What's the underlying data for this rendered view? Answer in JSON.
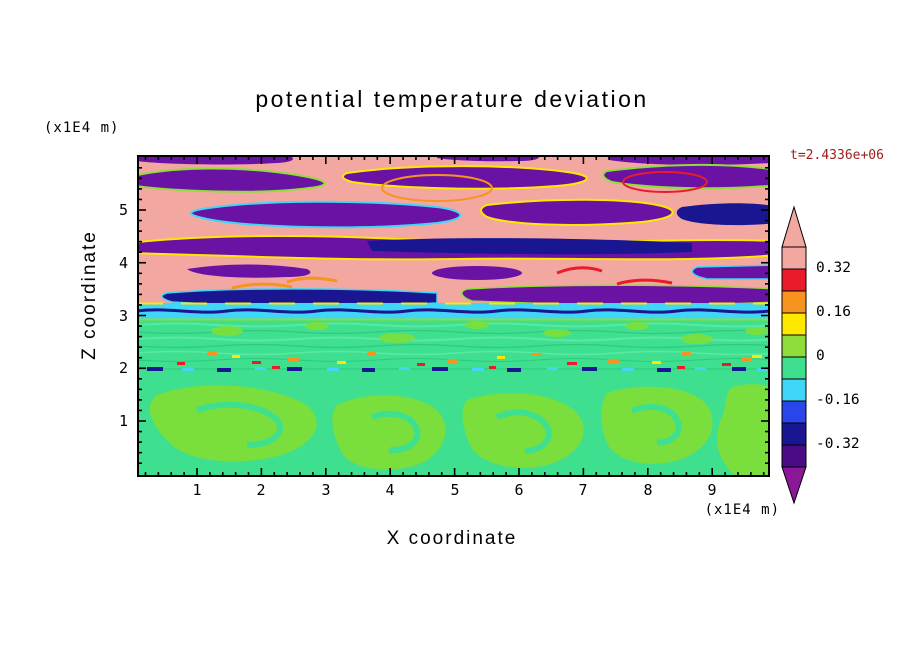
{
  "title": "potential temperature deviation",
  "time_label": "t=2.4336e+06",
  "axes": {
    "x": {
      "label": "X coordinate",
      "unit": "(x1E4 m)",
      "ticks": [
        "1",
        "2",
        "3",
        "4",
        "5",
        "6",
        "7",
        "8",
        "9"
      ]
    },
    "z": {
      "label": "Z coordinate",
      "unit": "(x1E4 m)",
      "ticks": [
        "5",
        "4",
        "3",
        "2",
        "1"
      ]
    }
  },
  "colorbar": {
    "labels": [
      "0.32",
      "0.16",
      "0",
      "-0.16",
      "-0.32"
    ],
    "segment_colors": [
      "#f3a7a1",
      "#ea1c2c",
      "#f79420",
      "#ffe800",
      "#8fdd3a",
      "#3ee08f",
      "#3fd6f7",
      "#2a46e8",
      "#1a1692",
      "#4b0b86"
    ],
    "arrow_top_color": "#f3a7a1",
    "arrow_bottom_color": "#8a1899"
  },
  "colors": {
    "background": "#ffffff",
    "frame": "#000000",
    "time_label": "#9b1c1c"
  },
  "chart_data": {
    "type": "heatmap",
    "title": "potential temperature deviation",
    "xlabel": "X coordinate (x1E4 m)",
    "ylabel": "Z coordinate (x1E4 m)",
    "x_ticks": [
      1,
      2,
      3,
      4,
      5,
      6,
      7,
      8,
      9
    ],
    "z_ticks": [
      1,
      2,
      3,
      4,
      5
    ],
    "xlim": [
      0,
      9.9
    ],
    "zlim": [
      0,
      6.1
    ],
    "time": "t=2.4336e+06",
    "labeled_levels": [
      0.32,
      0.16,
      0,
      -0.16,
      -0.32
    ],
    "contour_interval": 0.08,
    "legend_position": "right",
    "grid": false,
    "minor_tick_interval": 0.2,
    "field_description": {
      "upper_layer": "z > 3: alternating wavy horizontal bands of strong positive deviation (pink, > 0.32) and strong negative deviation (purple/navy, < -0.24), with thin yellow/orange/red/cyan fringes along band edges (stratospheric gravity waves)",
      "interface": "z = 3: thin cyan band (about -0.16) with a dark blue filament running through it",
      "middle_layer": "2 < z < 3: near-zero green field with fine horizontal striations and scattered small orange/red/yellow warm speckles near z = 2",
      "lower_layer": "z < 2: convective cells - large irregular blobs of weakly positive (yellow-green) deviation embedded in weakly negative (spring-green) background"
    }
  }
}
